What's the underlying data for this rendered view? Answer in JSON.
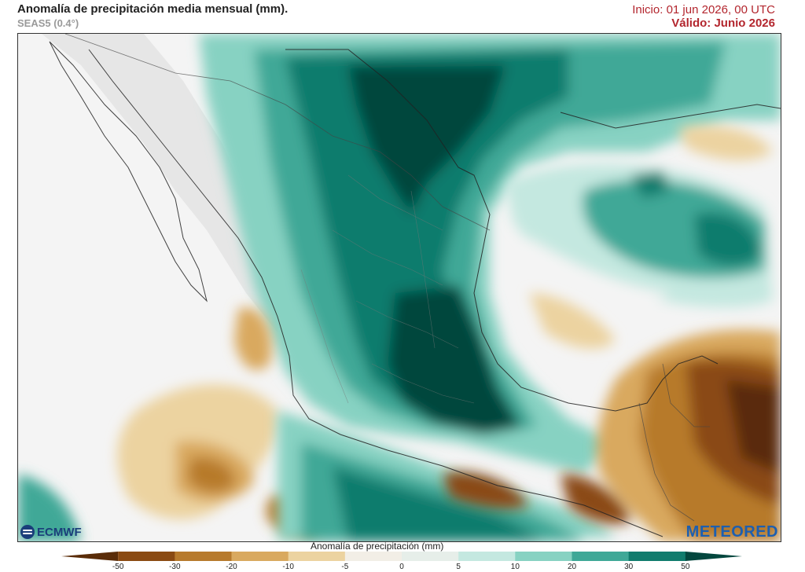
{
  "header": {
    "title": "Anomalía de precipitación media mensual (mm).",
    "model": "SEAS5 (0.4°)",
    "start": "Inicio: 01 jun 2026, 00 UTC",
    "valid": "Válido: Junio 2026"
  },
  "logos": {
    "left": "ECMWF",
    "right": "METEORED"
  },
  "legend": {
    "title": "Anomalía de precipitación (mm)",
    "ticks": [
      "-50",
      "-30",
      "-20",
      "-10",
      "-5",
      "0",
      "5",
      "10",
      "20",
      "30",
      "50"
    ],
    "colors": [
      "#5a2c08",
      "#8a4a12",
      "#b77a2c",
      "#d9a95f",
      "#ecd3a0",
      "#f2eee6",
      "#e6eee9",
      "#c4e8e0",
      "#87d2c2",
      "#3fa897",
      "#117c6d",
      "#04473e"
    ]
  },
  "map": {
    "region": "México y Centroamérica",
    "colors": {
      "neutral": "#f4f4f4",
      "land_neutral": "#e9e9e9"
    }
  }
}
